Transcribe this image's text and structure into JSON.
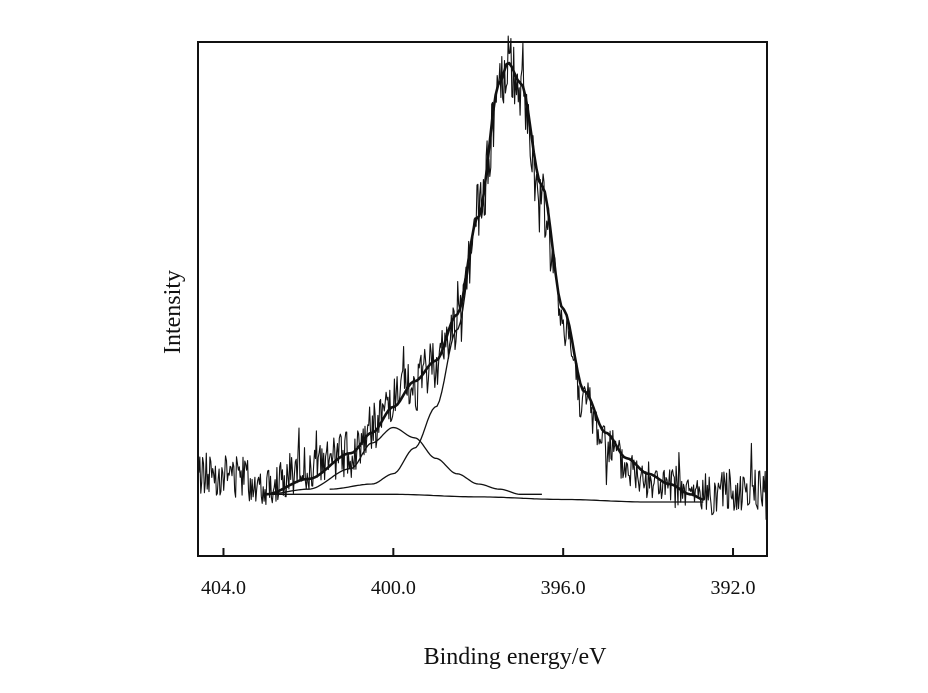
{
  "chart_data": {
    "type": "line",
    "title": "",
    "xlabel": "Binding energy/eV",
    "ylabel": "Intensity",
    "x_reversed": true,
    "xlim": [
      404.6,
      391.2
    ],
    "ylim": [
      0,
      1
    ],
    "x_ticks": [
      404.0,
      400.0,
      396.0,
      392.0
    ],
    "x_tick_labels": [
      "404.0",
      "400.0",
      "396.0",
      "392.0"
    ],
    "y_tick_labels": [],
    "grid": false,
    "series": [
      {
        "role": "measured",
        "style": "noisy",
        "x": [
          404.6,
          404.0,
          403.0,
          402.0,
          401.0,
          400.5,
          400.0,
          399.5,
          399.0,
          398.5,
          398.0,
          397.5,
          397.3,
          397.0,
          396.5,
          396.0,
          395.5,
          395.0,
          394.5,
          394.0,
          393.5,
          393.0,
          392.5,
          392.0,
          391.5,
          391.2
        ],
        "y": [
          0.16,
          0.16,
          0.14,
          0.17,
          0.2,
          0.25,
          0.3,
          0.33,
          0.38,
          0.45,
          0.66,
          0.9,
          0.96,
          0.9,
          0.68,
          0.46,
          0.3,
          0.22,
          0.17,
          0.15,
          0.13,
          0.12,
          0.12,
          0.13,
          0.13,
          0.13
        ]
      },
      {
        "role": "fit-envelope",
        "style": "thick",
        "x": [
          403.0,
          402.0,
          401.0,
          400.5,
          400.0,
          399.5,
          399.0,
          398.5,
          398.0,
          397.5,
          397.3,
          397.0,
          396.5,
          396.0,
          395.5,
          395.0,
          394.5,
          394.0,
          393.5,
          393.0,
          392.7
        ],
        "y": [
          0.12,
          0.15,
          0.2,
          0.24,
          0.29,
          0.34,
          0.38,
          0.47,
          0.66,
          0.92,
          0.96,
          0.92,
          0.72,
          0.48,
          0.32,
          0.24,
          0.19,
          0.16,
          0.14,
          0.12,
          0.11
        ]
      },
      {
        "role": "component-1",
        "style": "thin",
        "x": [
          403.0,
          402.0,
          401.0,
          400.5,
          400.0,
          399.5,
          399.0,
          398.5,
          398.0,
          397.5,
          397.0,
          396.5
        ],
        "y": [
          0.12,
          0.13,
          0.17,
          0.22,
          0.25,
          0.23,
          0.19,
          0.16,
          0.14,
          0.13,
          0.12,
          0.12
        ]
      },
      {
        "role": "component-2",
        "style": "thin",
        "x": [
          401.5,
          400.5,
          400.0,
          399.5,
          399.0,
          398.5,
          398.0,
          397.5,
          397.3,
          397.0,
          396.5,
          396.0,
          395.5,
          395.0,
          394.5,
          394.0,
          393.5,
          393.0,
          392.7
        ],
        "y": [
          0.13,
          0.14,
          0.16,
          0.21,
          0.29,
          0.44,
          0.66,
          0.92,
          0.96,
          0.92,
          0.72,
          0.48,
          0.32,
          0.24,
          0.19,
          0.16,
          0.14,
          0.12,
          0.11
        ]
      },
      {
        "role": "baseline",
        "style": "thin",
        "x": [
          403.0,
          400.0,
          398.0,
          396.0,
          394.0,
          392.7
        ],
        "y": [
          0.12,
          0.12,
          0.115,
          0.11,
          0.105,
          0.105
        ]
      }
    ]
  }
}
